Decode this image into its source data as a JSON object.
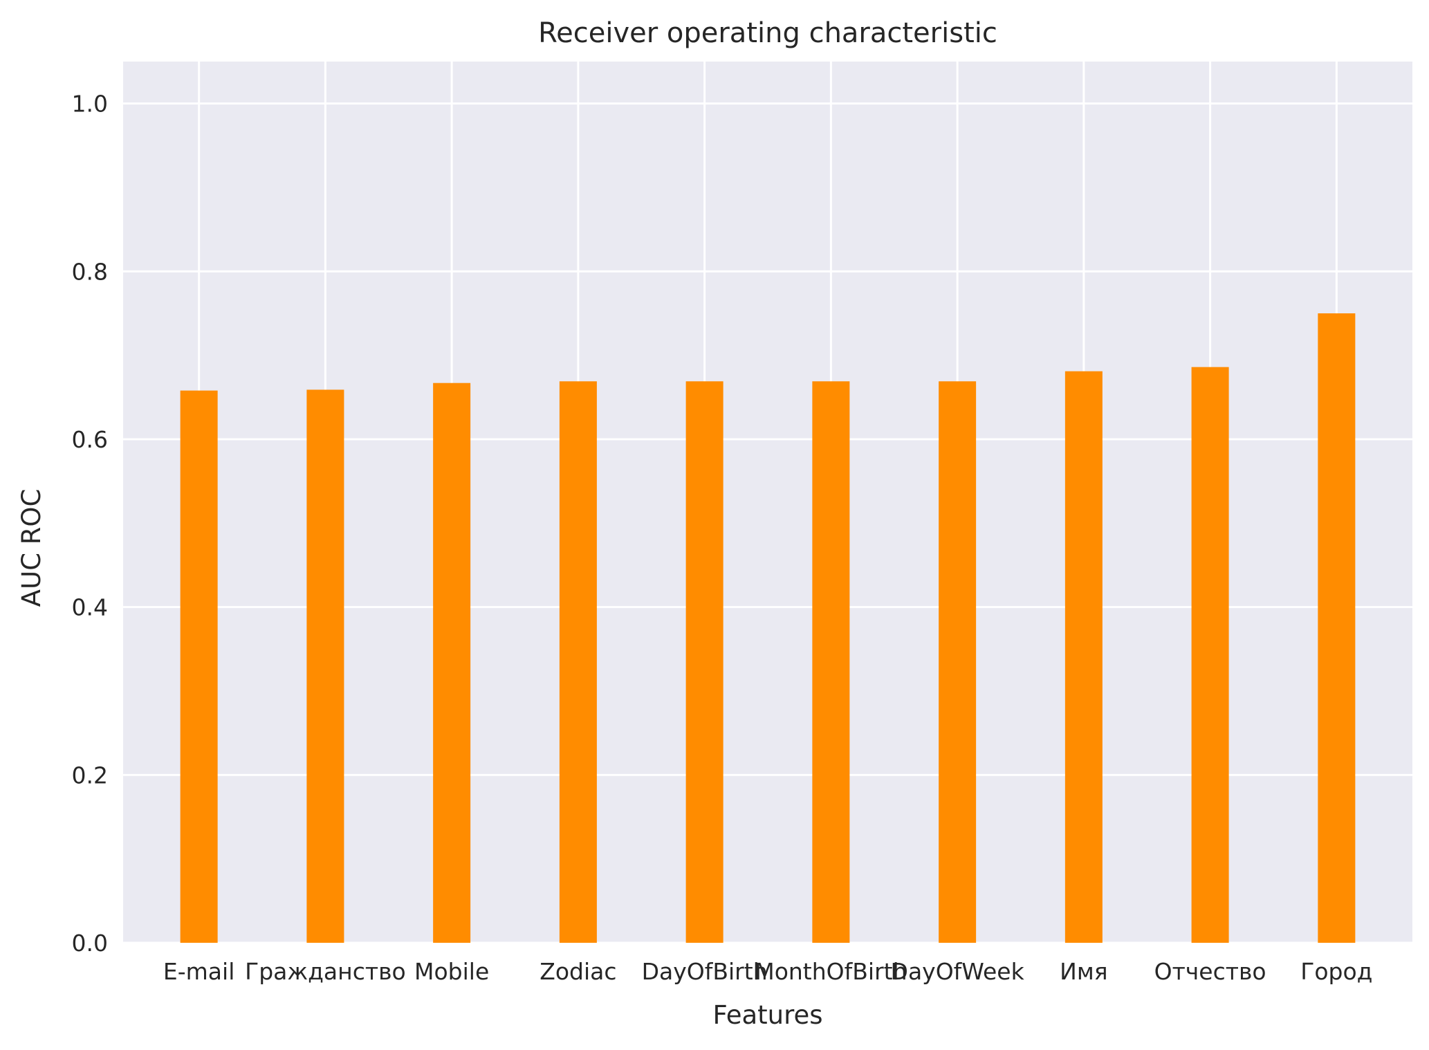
{
  "chart_data": {
    "type": "bar",
    "title": "Receiver operating characteristic",
    "xlabel": "Features",
    "ylabel": "AUC ROC",
    "categories": [
      "E-mail",
      "Гражданство",
      "Mobile",
      "Zodiac",
      "DayOfBirth",
      "MonthOfBirth",
      "DayOfWeek",
      "Имя",
      "Отчество",
      "Город"
    ],
    "values": [
      0.658,
      0.659,
      0.667,
      0.669,
      0.669,
      0.669,
      0.669,
      0.681,
      0.686,
      0.75
    ],
    "ylim": [
      0,
      1.05
    ],
    "yticks": [
      "0.0",
      "0.2",
      "0.4",
      "0.6",
      "0.8",
      "1.0"
    ],
    "grid": true,
    "colors": {
      "bar": "#ff8c00",
      "plot_background": "#eaeaf2",
      "grid": "#ffffff"
    }
  }
}
